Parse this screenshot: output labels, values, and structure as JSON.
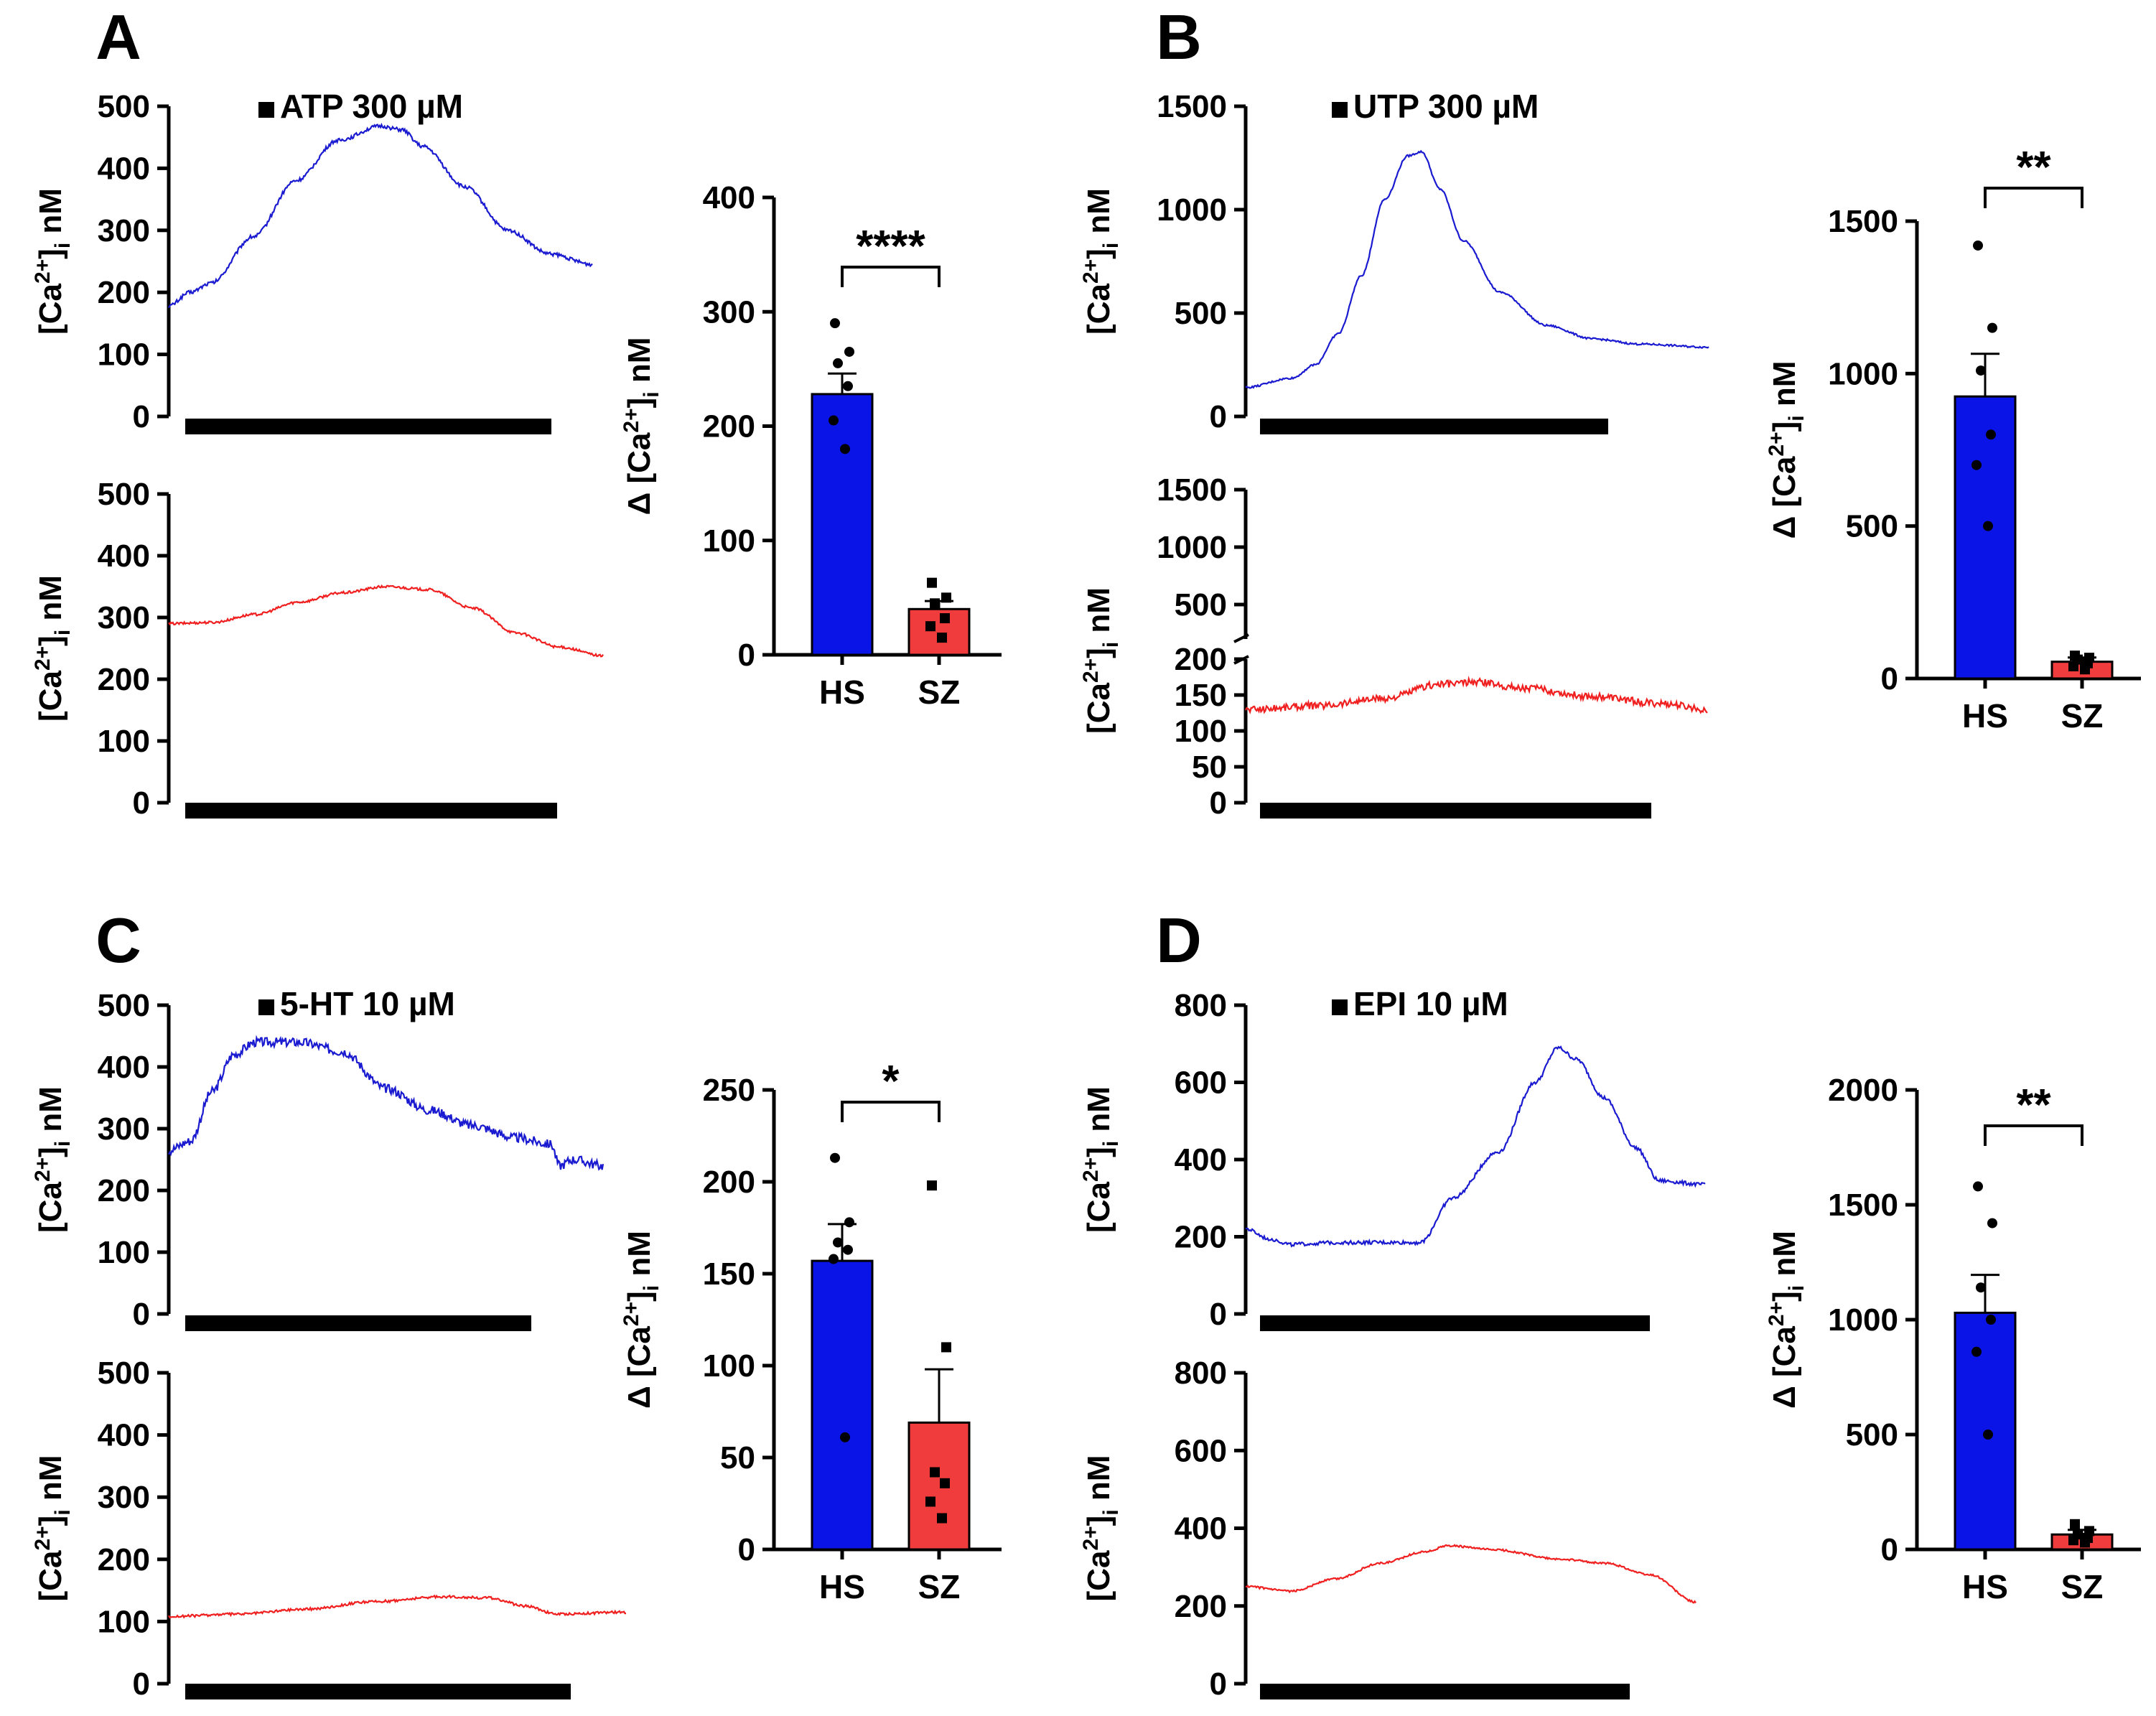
{
  "figure": {
    "ylabel_trace": "[Ca2+]i nM",
    "ylabel_bar": "Δ [Ca2+]i nM"
  },
  "colors": {
    "hs": "#0a14e6",
    "sz": "#f03c3c",
    "trace_hs": "#1a1ad0",
    "trace_sz": "#f02020",
    "axis": "#000000"
  },
  "chart_data": [
    {
      "panel": "A",
      "type": "line",
      "title": "ATP 300 µM",
      "trace": "HS",
      "ylabel": "[Ca2+]i nM",
      "ylim": [
        0,
        500
      ],
      "yticks": [
        0,
        100,
        200,
        300,
        400,
        500
      ],
      "x": [
        0,
        0.05,
        0.1,
        0.2,
        0.3,
        0.4,
        0.5,
        0.55,
        0.6,
        0.7,
        0.8,
        0.9,
        1.0
      ],
      "y": [
        178,
        200,
        215,
        290,
        380,
        445,
        468,
        462,
        435,
        370,
        300,
        262,
        245
      ]
    },
    {
      "panel": "A",
      "type": "line",
      "trace": "SZ",
      "ylabel": "[Ca2+]i nM",
      "ylim": [
        0,
        500
      ],
      "yticks": [
        0,
        100,
        200,
        300,
        400,
        500
      ],
      "x": [
        0,
        0.1,
        0.2,
        0.3,
        0.4,
        0.5,
        0.6,
        0.7,
        0.8,
        0.9,
        1.0
      ],
      "y": [
        290,
        292,
        305,
        325,
        340,
        350,
        345,
        315,
        275,
        252,
        238
      ]
    },
    {
      "panel": "A",
      "type": "bar",
      "categories": [
        "HS",
        "SZ"
      ],
      "values": [
        228,
        40
      ],
      "errors": [
        18,
        7
      ],
      "points": [
        [
          290,
          265,
          255,
          235,
          205,
          180
        ],
        [
          63,
          50,
          45,
          32,
          25,
          15
        ]
      ],
      "significance": "****",
      "ylabel": "Δ [Ca2+]i nM",
      "ylim": [
        0,
        400
      ],
      "yticks": [
        0,
        100,
        200,
        300,
        400
      ]
    },
    {
      "panel": "B",
      "type": "line",
      "title": "UTP 300 µM",
      "trace": "HS",
      "ylabel": "[Ca2+]i nM",
      "ylim": [
        0,
        1500
      ],
      "yticks": [
        0,
        500,
        1000,
        1500
      ],
      "x": [
        0,
        0.1,
        0.15,
        0.2,
        0.25,
        0.3,
        0.35,
        0.38,
        0.42,
        0.47,
        0.55,
        0.65,
        0.75,
        0.85,
        1.0
      ],
      "y": [
        140,
        185,
        250,
        400,
        680,
        1050,
        1260,
        1280,
        1100,
        850,
        600,
        440,
        375,
        350,
        335
      ]
    },
    {
      "panel": "B",
      "type": "line",
      "trace": "SZ",
      "ylabel": "[Ca2+]i nM",
      "ylim": [
        0,
        200
      ],
      "yticks": [
        0,
        50,
        100,
        150,
        200
      ],
      "ylim_upper": [
        200,
        1500
      ],
      "yticks_upper": [
        500,
        1000,
        1500
      ],
      "axis_break": true,
      "x": [
        0,
        0.15,
        0.3,
        0.42,
        0.5,
        0.6,
        0.75,
        0.9,
        1.0
      ],
      "y": [
        130,
        135,
        145,
        165,
        168,
        160,
        148,
        138,
        130
      ]
    },
    {
      "panel": "B",
      "type": "bar",
      "categories": [
        "HS",
        "SZ"
      ],
      "values": [
        925,
        55
      ],
      "errors": [
        140,
        14
      ],
      "points": [
        [
          1420,
          1150,
          1010,
          800,
          700,
          500
        ],
        [
          75,
          68,
          62,
          50,
          40,
          30
        ]
      ],
      "significance": "**",
      "ylabel": "Δ [Ca2+]i nM",
      "ylim": [
        0,
        1500
      ],
      "yticks": [
        0,
        500,
        1000,
        1500
      ]
    },
    {
      "panel": "C",
      "type": "line",
      "title": "5-HT 10 µM",
      "trace": "HS",
      "ylabel": "[Ca2+]i nM",
      "ylim": [
        0,
        500
      ],
      "yticks": [
        0,
        100,
        200,
        300,
        400,
        500
      ],
      "x": [
        0,
        0.05,
        0.1,
        0.15,
        0.2,
        0.3,
        0.4,
        0.5,
        0.6,
        0.7,
        0.8,
        0.88,
        0.9,
        0.93,
        1.0
      ],
      "y": [
        265,
        280,
        360,
        420,
        440,
        440,
        425,
        365,
        330,
        305,
        285,
        275,
        240,
        250,
        240
      ]
    },
    {
      "panel": "C",
      "type": "line",
      "trace": "SZ",
      "ylabel": "[Ca2+]i nM",
      "ylim": [
        0,
        500
      ],
      "yticks": [
        0,
        100,
        200,
        300,
        400,
        500
      ],
      "x": [
        0,
        0.15,
        0.3,
        0.45,
        0.6,
        0.7,
        0.78,
        0.85,
        1.0
      ],
      "y": [
        108,
        112,
        120,
        132,
        140,
        138,
        125,
        112,
        115
      ]
    },
    {
      "panel": "C",
      "type": "bar",
      "categories": [
        "HS",
        "SZ"
      ],
      "values": [
        157,
        69
      ],
      "errors": [
        20,
        29
      ],
      "points": [
        [
          213,
          178,
          167,
          163,
          158,
          61
        ],
        [
          198,
          110,
          42,
          36,
          26,
          17
        ]
      ],
      "significance": "*",
      "ylabel": "Δ [Ca2+]i nM",
      "ylim": [
        0,
        250
      ],
      "yticks": [
        0,
        50,
        100,
        150,
        200,
        250
      ]
    },
    {
      "panel": "D",
      "type": "line",
      "title": "EPI 10 µM",
      "trace": "HS",
      "ylabel": "[Ca2+]i nM",
      "ylim": [
        0,
        800
      ],
      "yticks": [
        0,
        200,
        400,
        600,
        800
      ],
      "x": [
        0,
        0.05,
        0.1,
        0.2,
        0.3,
        0.38,
        0.45,
        0.55,
        0.63,
        0.68,
        0.72,
        0.78,
        0.85,
        0.9,
        1.0
      ],
      "y": [
        220,
        195,
        180,
        185,
        185,
        185,
        300,
        420,
        600,
        690,
        660,
        560,
        430,
        345,
        335
      ]
    },
    {
      "panel": "D",
      "type": "line",
      "trace": "SZ",
      "ylabel": "[Ca2+]i nM",
      "ylim": [
        0,
        800
      ],
      "yticks": [
        0,
        200,
        400,
        600,
        800
      ],
      "x": [
        0,
        0.1,
        0.2,
        0.3,
        0.4,
        0.45,
        0.55,
        0.7,
        0.8,
        0.9,
        1.0
      ],
      "y": [
        250,
        238,
        270,
        310,
        340,
        355,
        345,
        320,
        310,
        280,
        210
      ]
    },
    {
      "panel": "D",
      "type": "bar",
      "categories": [
        "HS",
        "SZ"
      ],
      "values": [
        1030,
        65
      ],
      "errors": [
        165,
        20
      ],
      "points": [
        [
          1580,
          1420,
          1140,
          1000,
          860,
          500
        ],
        [
          110,
          80,
          65,
          50,
          40,
          30
        ]
      ],
      "significance": "**",
      "ylabel": "Δ [Ca2+]i nM",
      "ylim": [
        0,
        2000
      ],
      "yticks": [
        0,
        500,
        1000,
        1500,
        2000
      ]
    }
  ]
}
